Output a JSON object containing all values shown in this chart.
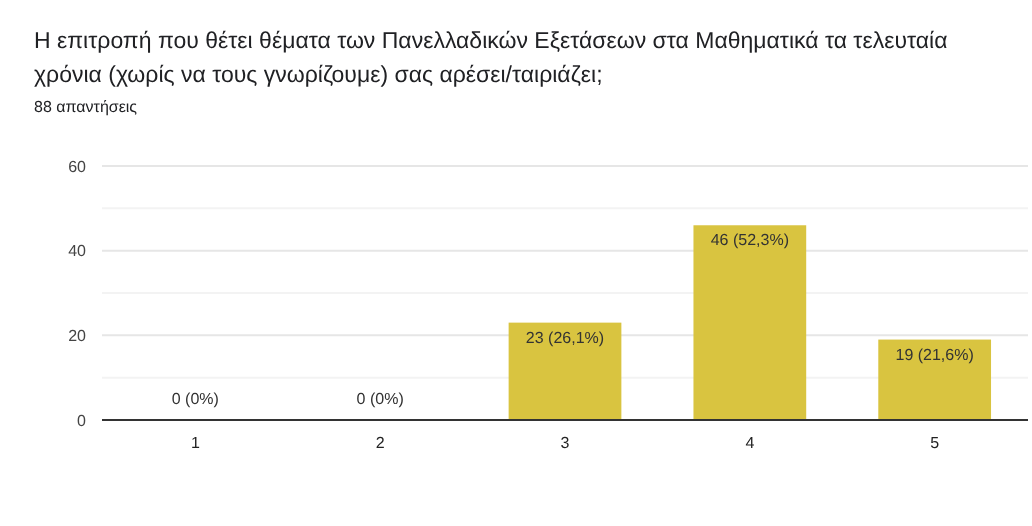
{
  "chart_data": {
    "type": "bar",
    "title": "Η επιτροπή που θέτει θέματα των Πανελλαδικών Εξετάσεων στα Μαθηματικά τα τελευταία χρόνια (χωρίς να τους γνωρίζουμε) σας αρέσει/ταιριάζει;",
    "subtitle": "88 απαντήσεις",
    "categories": [
      "1",
      "2",
      "3",
      "4",
      "5"
    ],
    "values": [
      0,
      0,
      23,
      46,
      19
    ],
    "value_labels": [
      "0 (0%)",
      "0 (0%)",
      "23 (26,1%)",
      "46 (52,3%)",
      "19 (21,6%)"
    ],
    "color": "#d9c440",
    "ylim": [
      0,
      60
    ],
    "yticks": [
      0,
      {
        "value": 10,
        "label": null
      },
      20,
      {
        "value": 30,
        "label": null
      },
      40,
      {
        "value": 50,
        "label": null
      },
      60
    ],
    "grid": "y"
  }
}
